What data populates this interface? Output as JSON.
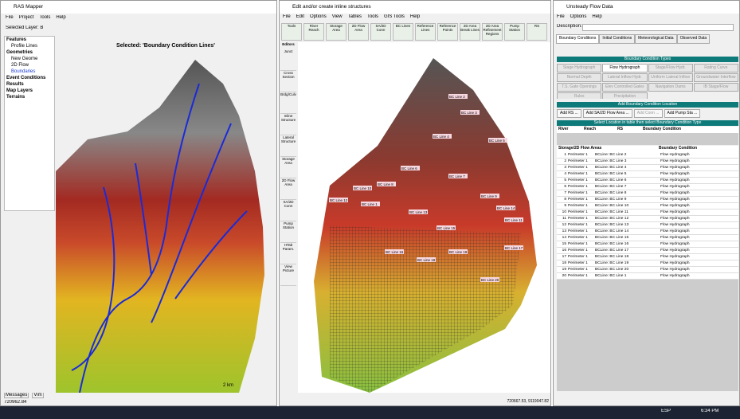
{
  "mapper": {
    "title": "RAS Mapper",
    "menu": [
      "File",
      "Project",
      "Tools",
      "Help"
    ],
    "selected_layer": "Selected Layer: B",
    "tree": [
      "Features",
      "Profile Lines",
      "Geometries",
      "New Geome",
      "2D Flow",
      "Boundaries",
      "Event Conditions",
      "Results",
      "Map Layers",
      "Terrains"
    ],
    "map_caption": "Selected: 'Boundary Condition Lines'",
    "scale": "2 km",
    "tabs": [
      "Messages",
      "Vim"
    ],
    "coords": "720962.84"
  },
  "geometry": {
    "title": "Edit and/or create inline structures",
    "menu": [
      "File",
      "Edit",
      "Options",
      "View",
      "Tables",
      "Tools",
      "GIS Tools",
      "Help"
    ],
    "toolbar": [
      "Tools",
      "River Reach",
      "Storage Area",
      "2D Flow Area",
      "SA/2D Conn",
      "BC Lines",
      "Reference Lines",
      "Reference Points",
      "2D Area Break Lines",
      "2D Area Refinement Regions",
      "Pump Station",
      "RS"
    ],
    "editors_title": "Editors",
    "editors": [
      "Junct",
      "Cross Section",
      "Brdg/Culv",
      "Inline Structure",
      "Lateral Structure",
      "Storage Area",
      "2D Flow Area",
      "SA/2D Conn",
      "Pump Station",
      "HTab Param.",
      "View Picture"
    ],
    "map_labels": [
      "BC Line 2",
      "BC Line 3",
      "BC Line 4",
      "BC Line 5",
      "BC Line 6",
      "BC Line 7",
      "BC Line 8",
      "BC Line 9",
      "BC Line 10",
      "BC Line 11",
      "BC Line 12",
      "BC Line 13",
      "BC Line 14",
      "BC Line 15",
      "BC Line 16",
      "BC Line 17",
      "BC Line 18",
      "BC Line 19",
      "BC Line 20",
      "BC Line 1"
    ],
    "coords": "720667.53, 9119047.82"
  },
  "unsteady": {
    "title": "Unsteady Flow Data",
    "menu": [
      "File",
      "Options",
      "Help"
    ],
    "description": "Description:",
    "tabs": [
      "Boundary Conditions",
      "Initial Conditions",
      "Meteorological Data",
      "Observed Data"
    ],
    "types_title": "Boundary Condition Types",
    "types": [
      "Stage Hydrograph",
      "Flow Hydrograph",
      "Stage/Flow Hydr.",
      "Rating Curve",
      "Normal Depth",
      "Lateral Inflow Hydr.",
      "Uniform Lateral Inflow",
      "Groundwater Interflow",
      "T.S. Gate Openings",
      "Elev Controlled Gates",
      "Navigation Dams",
      "IB Stage/Flow",
      "Rules",
      "Precipitation"
    ],
    "add_title": "Add Boundary Condition Location",
    "add_buttons": [
      "Add RS ...",
      "Add SA/2D Flow Area ...",
      "Add Conn ...",
      "Add Pump Sta ..."
    ],
    "select_hint": "Select Location in table then select Boundary Condition Type",
    "river_headers": [
      "River",
      "Reach",
      "RS",
      "Boundary Condition"
    ],
    "area_headers": [
      "Storage/2D Flow Areas",
      "Boundary Condition"
    ],
    "rows": [
      [
        "1",
        "Perimeter 1",
        "BCLine: BC Line 2",
        "Flow Hydrograph"
      ],
      [
        "2",
        "Perimeter 1",
        "BCLine: BC Line 3",
        "Flow Hydrograph"
      ],
      [
        "3",
        "Perimeter 1",
        "BCLine: BC Line 4",
        "Flow Hydrograph"
      ],
      [
        "4",
        "Perimeter 1",
        "BCLine: BC Line 5",
        "Flow Hydrograph"
      ],
      [
        "5",
        "Perimeter 1",
        "BCLine: BC Line 6",
        "Flow Hydrograph"
      ],
      [
        "6",
        "Perimeter 1",
        "BCLine: BC Line 7",
        "Flow Hydrograph"
      ],
      [
        "7",
        "Perimeter 1",
        "BCLine: BC Line 8",
        "Flow Hydrograph"
      ],
      [
        "8",
        "Perimeter 1",
        "BCLine: BC Line 9",
        "Flow Hydrograph"
      ],
      [
        "9",
        "Perimeter 1",
        "BCLine: BC Line 10",
        "Flow Hydrograph"
      ],
      [
        "10",
        "Perimeter 1",
        "BCLine: BC Line 11",
        "Flow Hydrograph"
      ],
      [
        "11",
        "Perimeter 1",
        "BCLine: BC Line 12",
        "Flow Hydrograph"
      ],
      [
        "12",
        "Perimeter 1",
        "BCLine: BC Line 13",
        "Flow Hydrograph"
      ],
      [
        "13",
        "Perimeter 1",
        "BCLine: BC Line 14",
        "Flow Hydrograph"
      ],
      [
        "14",
        "Perimeter 1",
        "BCLine: BC Line 15",
        "Flow Hydrograph"
      ],
      [
        "15",
        "Perimeter 1",
        "BCLine: BC Line 16",
        "Flow Hydrograph"
      ],
      [
        "16",
        "Perimeter 1",
        "BCLine: BC Line 17",
        "Flow Hydrograph"
      ],
      [
        "17",
        "Perimeter 1",
        "BCLine: BC Line 18",
        "Flow Hydrograph"
      ],
      [
        "18",
        "Perimeter 1",
        "BCLine: BC Line 19",
        "Flow Hydrograph"
      ],
      [
        "19",
        "Perimeter 1",
        "BCLine: BC Line 20",
        "Flow Hydrograph"
      ],
      [
        "20",
        "Perimeter 1",
        "BCLine: BC Line 1",
        "Flow Hydrograph"
      ]
    ]
  },
  "taskbar": {
    "lang": "ESP",
    "time": "6:34 PM"
  }
}
